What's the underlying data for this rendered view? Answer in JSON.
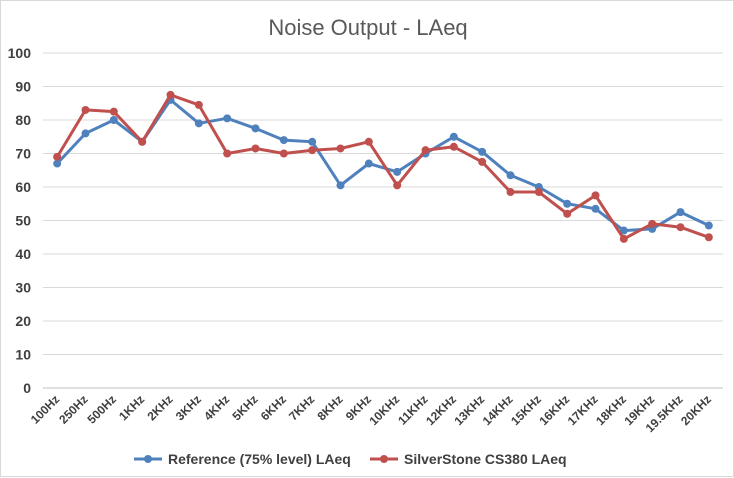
{
  "chart_data": {
    "type": "line",
    "title": "Noise Output - LAeq",
    "xlabel": "",
    "ylabel": "",
    "ylim": [
      0,
      100
    ],
    "yticks": [
      0,
      10,
      20,
      30,
      40,
      50,
      60,
      70,
      80,
      90,
      100
    ],
    "grid": true,
    "legend_position": "bottom",
    "categories": [
      "100Hz",
      "250Hz",
      "500Hz",
      "1KHz",
      "2KHz",
      "3KHz",
      "4KHz",
      "5KHz",
      "6KHz",
      "7KHz",
      "8KHz",
      "9KHz",
      "10KHz",
      "11KHz",
      "12KHz",
      "13KHz",
      "14KHz",
      "15KHz",
      "16KHz",
      "17KHz",
      "18KHz",
      "19KHz",
      "19.5KHz",
      "20KHz"
    ],
    "series": [
      {
        "name": "Reference (75% level) LAeq",
        "color": "#4f81bd",
        "values": [
          67,
          76,
          80,
          73.5,
          86,
          79,
          80.5,
          77.5,
          74,
          73.5,
          60.5,
          67,
          64.5,
          70,
          75,
          70.5,
          63.5,
          60,
          55,
          53.5,
          47,
          47.5,
          52.5,
          48.5
        ]
      },
      {
        "name": "SilverStone CS380 LAeq",
        "color": "#c0504d",
        "values": [
          69,
          83,
          82.5,
          73.5,
          87.5,
          84.5,
          70,
          71.5,
          70,
          71,
          71.5,
          73.5,
          60.5,
          71,
          72,
          67.5,
          58.5,
          58.5,
          52,
          57.5,
          44.5,
          49,
          48,
          45
        ]
      }
    ]
  }
}
